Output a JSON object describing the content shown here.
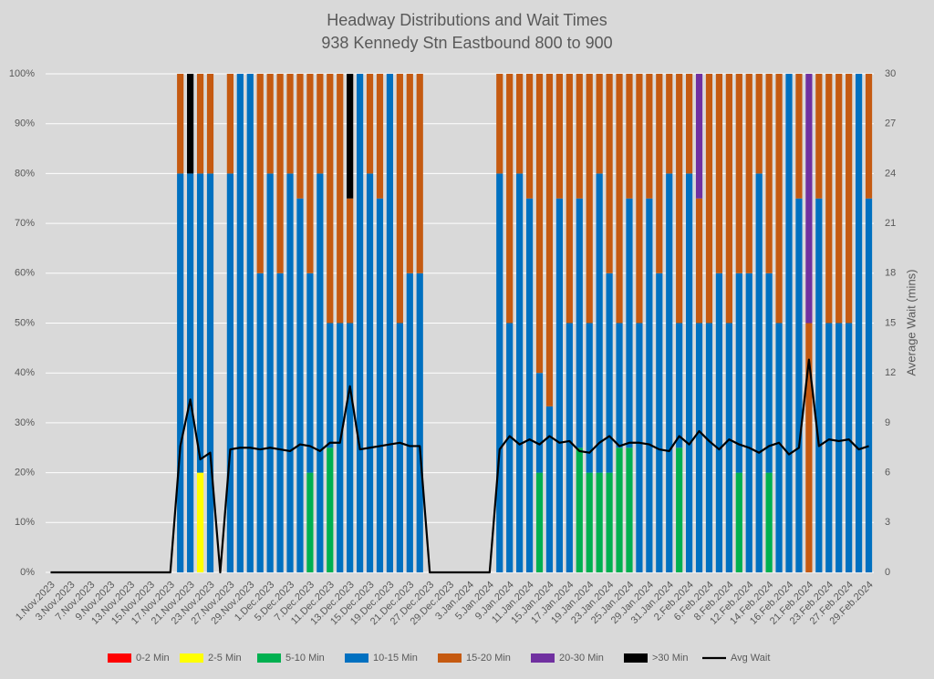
{
  "chart_data": {
    "type": "stacked-bar-line",
    "title": "Headway Distributions and Wait Times",
    "subtitle": "938  Kennedy Stn Eastbound 800 to 900",
    "y2_label": "Average Wait (mins)",
    "categories": [
      "1.Nov.2023",
      null,
      "3.Nov.2023",
      null,
      "7.Nov.2023",
      null,
      "9.Nov.2023",
      null,
      "13.Nov.2023",
      null,
      "15.Nov.2023",
      null,
      "17.Nov.2023",
      null,
      "21.Nov.2023",
      null,
      "23.Nov.2023",
      null,
      "27.Nov.2023",
      null,
      "29.Nov.2023",
      null,
      "1.Dec.2023",
      null,
      "5.Dec.2023",
      null,
      "7.Dec.2023",
      null,
      "11.Dec.2023",
      null,
      "13.Dec.2023",
      null,
      "15.Dec.2023",
      null,
      "19.Dec.2023",
      null,
      "21.Dec.2023",
      null,
      "27.Dec.2023",
      null,
      "29.Dec.2023",
      null,
      "3.Jan.2024",
      null,
      "5.Jan.2024",
      null,
      "9.Jan.2024",
      null,
      "11.Jan.2024",
      null,
      "15.Jan.2024",
      null,
      "17.Jan.2024",
      null,
      "19.Jan.2024",
      null,
      "23.Jan.2024",
      null,
      "25.Jan.2024",
      null,
      "29.Jan.2024",
      null,
      "31.Jan.2024",
      null,
      "2.Feb.2024",
      null,
      "6.Feb.2024",
      null,
      "8.Feb.2024",
      null,
      "12.Feb.2024",
      null,
      "14.Feb.2024",
      null,
      "16.Feb.2024",
      null,
      "21.Feb.2024",
      null,
      "23.Feb.2024",
      null,
      "27.Feb.2024",
      null,
      "29.Feb.2024"
    ],
    "ylim": [
      0,
      100
    ],
    "yticks": [
      {
        "value": 0,
        "label": "0%"
      },
      {
        "value": 10,
        "label": "10%"
      },
      {
        "value": 20,
        "label": "20%"
      },
      {
        "value": 30,
        "label": "30%"
      },
      {
        "value": 40,
        "label": "40%"
      },
      {
        "value": 50,
        "label": "50%"
      },
      {
        "value": 60,
        "label": "60%"
      },
      {
        "value": 70,
        "label": "70%"
      },
      {
        "value": 80,
        "label": "80%"
      },
      {
        "value": 90,
        "label": "90%"
      },
      {
        "value": 100,
        "label": "100%"
      }
    ],
    "y2lim": [
      0,
      30
    ],
    "y2ticks": [
      0,
      3,
      6,
      9,
      12,
      15,
      18,
      21,
      24,
      27,
      30
    ],
    "grid": true,
    "legend": "bottom",
    "series": [
      {
        "name": "0-2 Min",
        "color": "#ff0000",
        "values": [
          null,
          null,
          null,
          null,
          null,
          null,
          null,
          null,
          null,
          null,
          null,
          null,
          null,
          0,
          0,
          0,
          0,
          null,
          0,
          0,
          0,
          0,
          0,
          0,
          0,
          0,
          0,
          0,
          0,
          0,
          0,
          0,
          0,
          0,
          0,
          0,
          0,
          0,
          null,
          null,
          null,
          null,
          null,
          null,
          null,
          0,
          0,
          0,
          0,
          0,
          0,
          0,
          0,
          0,
          0,
          0,
          0,
          0,
          0,
          0,
          0,
          0,
          0,
          0,
          0,
          0,
          0,
          0,
          0,
          0,
          0,
          0,
          0,
          0,
          0,
          0,
          0,
          0,
          0,
          0,
          0,
          0,
          0
        ]
      },
      {
        "name": "2-5 Min",
        "color": "#ffff00",
        "values": [
          null,
          null,
          null,
          null,
          null,
          null,
          null,
          null,
          null,
          null,
          null,
          null,
          null,
          0,
          0,
          20,
          0,
          null,
          0,
          0,
          0,
          0,
          0,
          0,
          0,
          0,
          0,
          0,
          0,
          0,
          0,
          0,
          0,
          0,
          0,
          0,
          0,
          0,
          null,
          null,
          null,
          null,
          null,
          null,
          null,
          0,
          0,
          0,
          0,
          0,
          0,
          0,
          0,
          0,
          0,
          0,
          0,
          0,
          0,
          0,
          0,
          0,
          0,
          0,
          0,
          0,
          0,
          0,
          0,
          0,
          0,
          0,
          0,
          0,
          0,
          0,
          0,
          0,
          0,
          0,
          0,
          0,
          0
        ]
      },
      {
        "name": "5-10 Min",
        "color": "#00b050",
        "values": [
          null,
          null,
          null,
          null,
          null,
          null,
          null,
          null,
          null,
          null,
          null,
          null,
          null,
          0,
          0,
          0,
          0,
          null,
          0,
          0,
          0,
          0,
          0,
          0,
          0,
          0,
          20,
          0,
          25,
          0,
          0,
          0,
          0,
          0,
          0,
          0,
          0,
          0,
          null,
          null,
          null,
          null,
          null,
          null,
          null,
          0,
          0,
          0,
          0,
          20,
          0,
          0,
          0,
          25,
          20,
          20,
          20,
          25,
          25,
          0,
          0,
          0,
          0,
          25,
          0,
          0,
          0,
          0,
          0,
          20,
          0,
          0,
          20,
          0,
          0,
          0,
          0,
          0,
          0,
          0,
          0,
          0,
          0
        ]
      },
      {
        "name": "10-15 Min",
        "color": "#0070c0",
        "values": [
          null,
          null,
          null,
          null,
          null,
          null,
          null,
          null,
          null,
          null,
          null,
          null,
          null,
          80,
          80,
          60,
          80,
          null,
          80,
          100,
          100,
          60,
          80,
          60,
          80,
          75,
          40,
          80,
          25,
          50,
          50,
          100,
          80,
          75,
          100,
          50,
          60,
          60,
          null,
          null,
          null,
          null,
          null,
          null,
          null,
          80,
          50,
          80,
          75,
          20,
          33.3,
          75,
          50,
          50,
          30,
          60,
          40,
          25,
          50,
          50,
          75,
          60,
          80,
          25,
          80,
          50,
          50,
          60,
          50,
          40,
          60,
          80,
          40,
          50,
          100,
          75,
          0,
          75,
          50,
          50,
          50,
          100,
          75
        ]
      },
      {
        "name": "15-20 Min",
        "color": "#c55a11",
        "values": [
          null,
          null,
          null,
          null,
          null,
          null,
          null,
          null,
          null,
          null,
          null,
          null,
          null,
          20,
          0,
          20,
          20,
          null,
          20,
          0,
          0,
          40,
          20,
          40,
          20,
          25,
          40,
          20,
          50,
          50,
          25,
          0,
          20,
          25,
          0,
          50,
          40,
          40,
          null,
          null,
          null,
          null,
          null,
          null,
          null,
          20,
          50,
          20,
          25,
          60,
          66.7,
          25,
          50,
          25,
          50,
          20,
          40,
          50,
          25,
          50,
          25,
          40,
          20,
          50,
          20,
          25,
          50,
          40,
          50,
          40,
          40,
          20,
          40,
          50,
          0,
          25,
          50,
          25,
          50,
          50,
          50,
          0,
          25
        ]
      },
      {
        "name": "20-30 Min",
        "color": "#7030a0",
        "values": [
          null,
          null,
          null,
          null,
          null,
          null,
          null,
          null,
          null,
          null,
          null,
          null,
          null,
          0,
          0,
          0,
          0,
          null,
          0,
          0,
          0,
          0,
          0,
          0,
          0,
          0,
          0,
          0,
          0,
          0,
          0,
          0,
          0,
          0,
          0,
          0,
          0,
          0,
          null,
          null,
          null,
          null,
          null,
          null,
          null,
          0,
          0,
          0,
          0,
          0,
          0,
          0,
          0,
          0,
          0,
          0,
          0,
          0,
          0,
          0,
          0,
          0,
          0,
          0,
          0,
          25,
          0,
          0,
          0,
          0,
          0,
          0,
          0,
          0,
          0,
          0,
          50,
          0,
          0,
          0,
          0,
          0,
          0
        ]
      },
      {
        "name": ">30 Min",
        "color": "#000000",
        "values": [
          null,
          null,
          null,
          null,
          null,
          null,
          null,
          null,
          null,
          null,
          null,
          null,
          null,
          0,
          20,
          0,
          0,
          null,
          0,
          0,
          0,
          0,
          0,
          0,
          0,
          0,
          0,
          0,
          0,
          0,
          25,
          0,
          0,
          0,
          0,
          0,
          0,
          0,
          null,
          null,
          null,
          null,
          null,
          null,
          null,
          0,
          0,
          0,
          0,
          0,
          0,
          0,
          0,
          0,
          0,
          0,
          0,
          0,
          0,
          0,
          0,
          0,
          0,
          0,
          0,
          0,
          0,
          0,
          0,
          0,
          0,
          0,
          0,
          0,
          0,
          0,
          0,
          0,
          0,
          0,
          0,
          0,
          0
        ]
      },
      {
        "name": "Avg Wait",
        "color": "#000000",
        "type": "line",
        "axis": "y2",
        "values": [
          0,
          0,
          0,
          0,
          0,
          0,
          0,
          0,
          0,
          0,
          0,
          0,
          0,
          7.6,
          10.4,
          6.8,
          7.2,
          0,
          7.4,
          7.5,
          7.5,
          7.4,
          7.5,
          7.4,
          7.3,
          7.7,
          7.6,
          7.3,
          7.8,
          7.8,
          11.2,
          7.4,
          7.5,
          7.6,
          7.7,
          7.8,
          7.6,
          7.6,
          0,
          0,
          0,
          0,
          0,
          0,
          0,
          7.4,
          8.2,
          7.7,
          8.0,
          7.7,
          8.2,
          7.8,
          7.9,
          7.3,
          7.2,
          7.8,
          8.2,
          7.6,
          7.8,
          7.8,
          7.7,
          7.4,
          7.3,
          8.2,
          7.7,
          8.5,
          7.9,
          7.4,
          8.0,
          7.7,
          7.5,
          7.2,
          7.6,
          7.8,
          7.1,
          7.5,
          12.8,
          7.6,
          8.0,
          7.9,
          8.0,
          7.4,
          7.6
        ]
      }
    ]
  }
}
